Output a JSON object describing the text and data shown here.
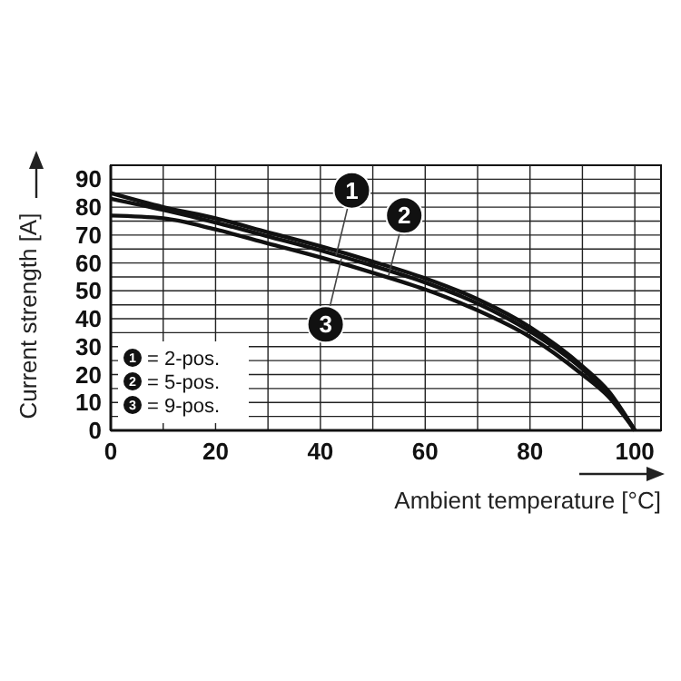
{
  "chart_data": {
    "type": "line",
    "xlabel": "Ambient temperature [°C]",
    "ylabel": "Current strength [A]",
    "x": [
      0,
      10,
      20,
      30,
      40,
      50,
      60,
      70,
      80,
      90,
      95,
      100
    ],
    "series": [
      {
        "name": "= 2-pos.",
        "color": "#111111",
        "values": [
          85,
          80,
          76,
          71,
          66,
          60.5,
          54.5,
          47,
          37,
          23,
          14,
          0
        ]
      },
      {
        "name": "= 5-pos.",
        "color": "#111111",
        "values": [
          83,
          79,
          74.5,
          69.5,
          64.5,
          59,
          53,
          45.5,
          35.5,
          22,
          13,
          0
        ]
      },
      {
        "name": "= 9-pos.",
        "color": "#111111",
        "values": [
          77,
          76,
          72,
          67,
          62,
          56.5,
          50.5,
          43,
          33.5,
          20,
          12,
          0
        ]
      }
    ],
    "annotations": [
      {
        "text": "1",
        "x": 46,
        "y": 86
      },
      {
        "text": "2",
        "x": 56,
        "y": 77
      },
      {
        "text": "3",
        "x": 41,
        "y": 38
      }
    ],
    "xlim": [
      0,
      105
    ],
    "xticks": [
      0,
      20,
      40,
      60,
      80,
      100,
      {
        "value": 10,
        "label": null
      },
      {
        "value": 30,
        "label": null
      },
      {
        "value": 50,
        "label": null
      },
      {
        "value": 70,
        "label": null
      },
      {
        "value": 90,
        "label": null
      }
    ],
    "ylim": [
      0,
      95
    ],
    "yticks": [
      0,
      10,
      20,
      30,
      40,
      50,
      60,
      70,
      80,
      90,
      {
        "value": 5,
        "label": null
      },
      {
        "value": 15,
        "label": null
      },
      {
        "value": 25,
        "label": null
      },
      {
        "value": 35,
        "label": null
      },
      {
        "value": 45,
        "label": null
      },
      {
        "value": 55,
        "label": null
      },
      {
        "value": 65,
        "label": null
      },
      {
        "value": 75,
        "label": null
      },
      {
        "value": 85,
        "label": null
      }
    ],
    "grid": true,
    "legend": "bottom left",
    "marker": "none",
    "line_style": "solid"
  }
}
